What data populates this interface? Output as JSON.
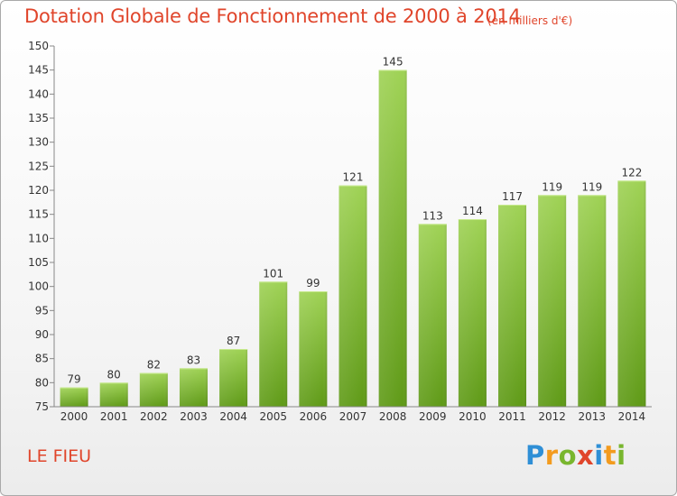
{
  "title": "Dotation Globale de Fonctionnement de 2000 à 2014",
  "subtitle": "(en milliers d'€)",
  "commune": "LE FIEU",
  "brand": {
    "text": "Proxiti",
    "letters": [
      {
        "ch": "P",
        "color": "#2f8fd6"
      },
      {
        "ch": "r",
        "color": "#f39b1f"
      },
      {
        "ch": "o",
        "color": "#79b62e"
      },
      {
        "ch": "x",
        "color": "#e0452b"
      },
      {
        "ch": "i",
        "color": "#2f8fd6"
      },
      {
        "ch": "t",
        "color": "#f39b1f"
      },
      {
        "ch": "i",
        "color": "#79b62e"
      }
    ]
  },
  "colors": {
    "title": "#e0452b",
    "bar_top": "#9fd255",
    "bar_bottom": "#5f9a17",
    "axis": "#888888",
    "text": "#333333"
  },
  "chart_data": {
    "type": "bar",
    "categories": [
      "2000",
      "2001",
      "2002",
      "2003",
      "2004",
      "2005",
      "2006",
      "2007",
      "2008",
      "2009",
      "2010",
      "2011",
      "2012",
      "2013",
      "2014"
    ],
    "values": [
      79,
      80,
      82,
      83,
      87,
      101,
      99,
      121,
      145,
      113,
      114,
      117,
      119,
      119,
      122
    ],
    "ylim": [
      75,
      150
    ],
    "yticks": [
      75,
      80,
      85,
      90,
      95,
      100,
      105,
      110,
      115,
      120,
      125,
      130,
      135,
      140,
      145,
      150
    ],
    "grid": false,
    "legend": "none"
  }
}
